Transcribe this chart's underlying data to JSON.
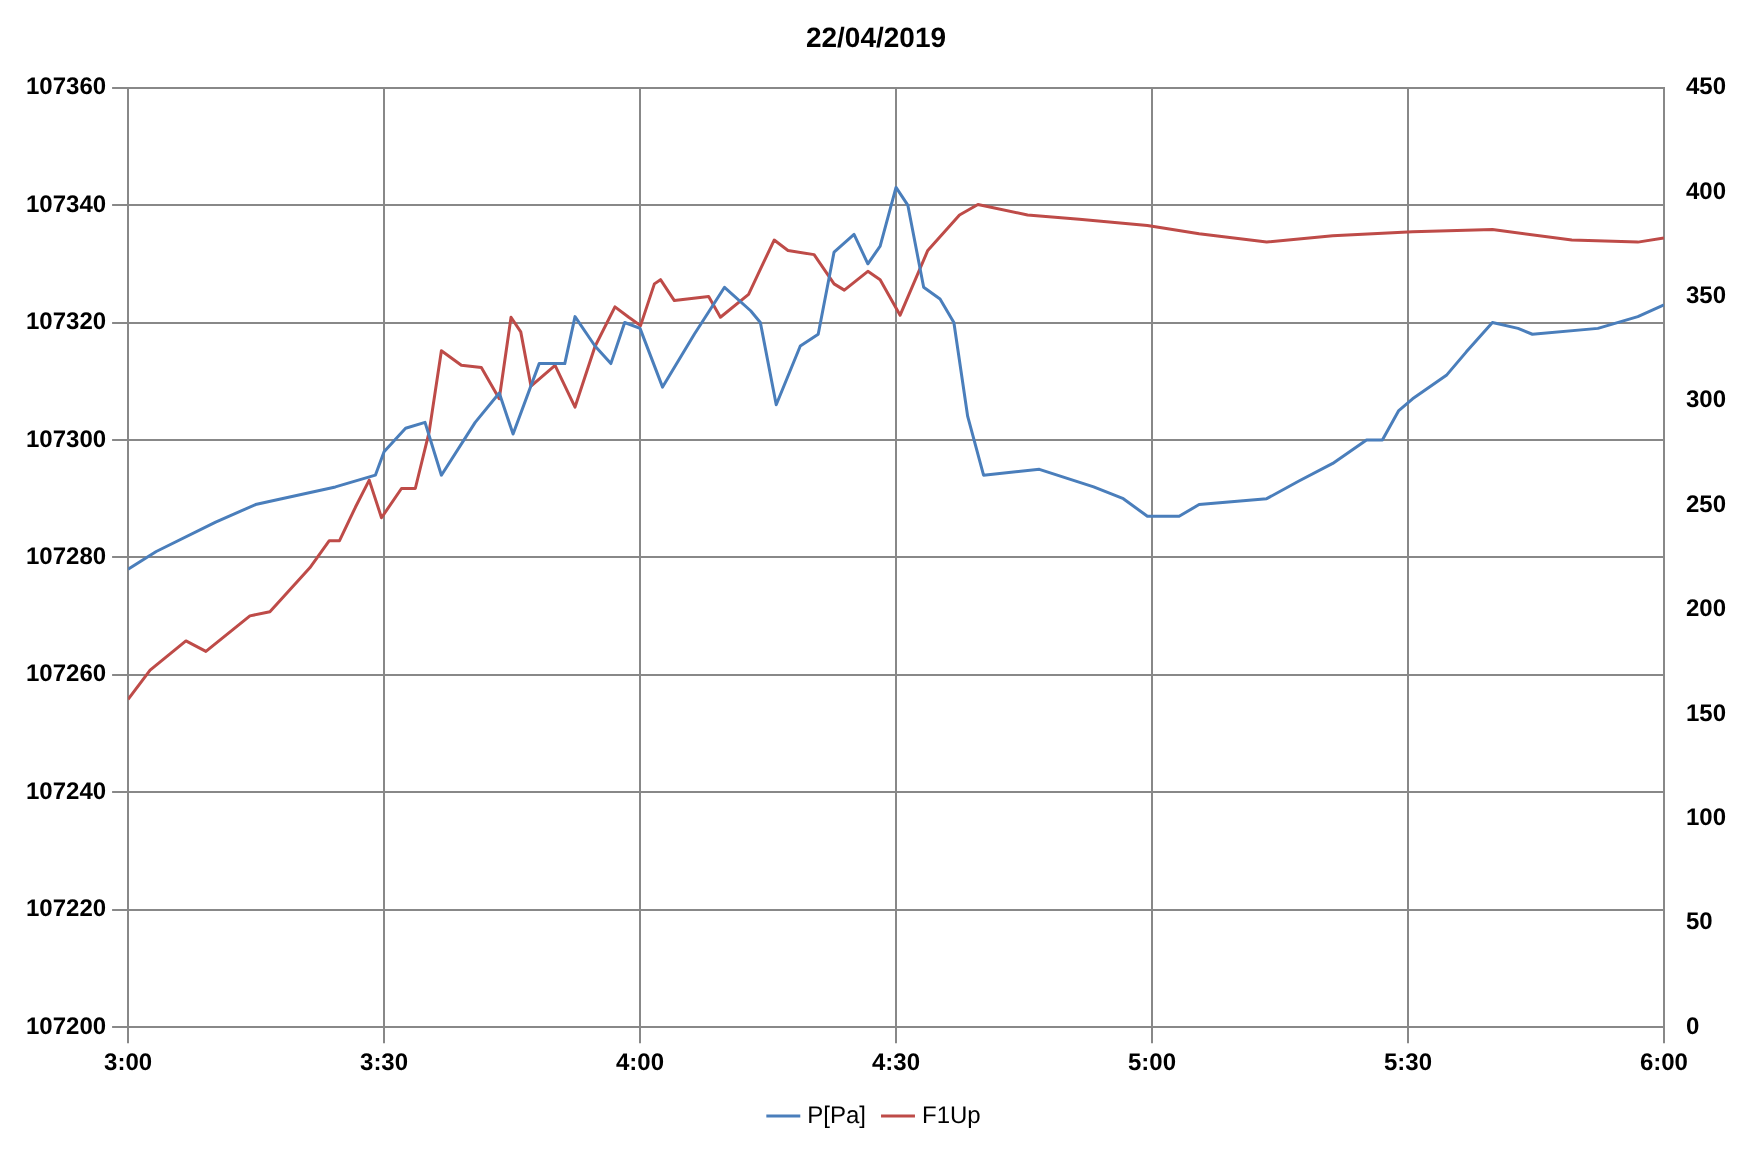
{
  "chart_data": {
    "type": "line",
    "title": "22/04/2019",
    "legend": "bottom",
    "grid": true,
    "marker": "none",
    "line_style": "solid",
    "xlim": [
      3,
      6
    ],
    "xticks": [
      {
        "value": 3,
        "label": "3:00"
      },
      {
        "value": 3.5,
        "label": "3:30"
      },
      {
        "value": 4,
        "label": "4:00"
      },
      {
        "value": 4.5,
        "label": "4:30"
      },
      {
        "value": 5,
        "label": "5:00"
      },
      {
        "value": 5.5,
        "label": "5:30"
      },
      {
        "value": 6,
        "label": "6:00"
      }
    ],
    "ylim": [
      107200,
      107360
    ],
    "yticks": [
      107200,
      107220,
      107240,
      107260,
      107280,
      107300,
      107320,
      107340,
      107360
    ],
    "y2lim": [
      0,
      450
    ],
    "y2ticks": [
      0,
      50,
      100,
      150,
      200,
      250,
      300,
      350,
      400,
      450
    ],
    "series": [
      {
        "name": "P[Pa]",
        "color": "#4a7ebb",
        "x": [
          3.0,
          3.055,
          3.171,
          3.249,
          3.3,
          3.405,
          3.483,
          3.5,
          3.542,
          3.58,
          3.612,
          3.678,
          3.725,
          3.752,
          3.803,
          3.853,
          3.873,
          3.912,
          3.943,
          3.97,
          4.0,
          4.044,
          4.106,
          4.165,
          4.216,
          4.235,
          4.266,
          4.313,
          4.348,
          4.379,
          4.418,
          4.445,
          4.469,
          4.5,
          4.523,
          4.554,
          4.586,
          4.613,
          4.64,
          4.671,
          4.78,
          4.886,
          4.944,
          4.991,
          5.053,
          5.092,
          5.224,
          5.287,
          5.353,
          5.419,
          5.45,
          5.482,
          5.509,
          5.575,
          5.614,
          5.665,
          5.715,
          5.743,
          5.871,
          5.949,
          6.0
        ],
        "values": [
          107278,
          107281,
          107286,
          107289,
          107290,
          107292,
          107294,
          107298,
          107302,
          107303,
          107294,
          107303,
          107308,
          107301,
          107313,
          107313,
          107321,
          107316,
          107313,
          107320,
          107319,
          107309,
          107318,
          107326,
          107322,
          107320,
          107306,
          107316,
          107318,
          107332,
          107335,
          107330,
          107333,
          107343,
          107340,
          107326,
          107324,
          107320,
          107304,
          107294,
          107295,
          107292,
          107290,
          107287,
          107287,
          107289,
          107290,
          107293,
          107296,
          107300,
          107300,
          107305,
          107307,
          107311,
          107315,
          107320,
          107319,
          107318,
          107319,
          107321,
          107323
        ]
      },
      {
        "name": "F1Up",
        "color": "#be4b48",
        "axis": "y2",
        "x": [
          3.0,
          3.043,
          3.113,
          3.152,
          3.238,
          3.277,
          3.355,
          3.393,
          3.413,
          3.444,
          3.471,
          3.495,
          3.534,
          3.561,
          3.588,
          3.612,
          3.651,
          3.69,
          3.725,
          3.748,
          3.767,
          3.787,
          3.834,
          3.873,
          3.912,
          3.951,
          3.978,
          4.001,
          4.028,
          4.04,
          4.067,
          4.134,
          4.157,
          4.212,
          4.262,
          4.289,
          4.34,
          4.379,
          4.399,
          4.445,
          4.469,
          4.508,
          4.562,
          4.624,
          4.66,
          4.757,
          4.858,
          4.991,
          5.092,
          5.224,
          5.353,
          5.509,
          5.665,
          5.82,
          5.949,
          6.0
        ],
        "values": [
          157,
          171,
          185,
          180,
          197,
          199,
          220,
          233,
          233,
          249,
          262,
          244,
          258,
          258,
          285,
          324,
          317,
          316,
          301,
          340,
          333,
          307,
          317,
          297,
          326,
          345,
          340,
          336,
          356,
          358,
          348,
          350,
          340,
          351,
          377,
          372,
          370,
          356,
          353,
          362,
          358,
          341,
          372,
          389,
          394,
          389,
          387,
          384,
          380,
          376,
          379,
          381,
          382,
          377,
          376,
          378
        ]
      }
    ]
  }
}
